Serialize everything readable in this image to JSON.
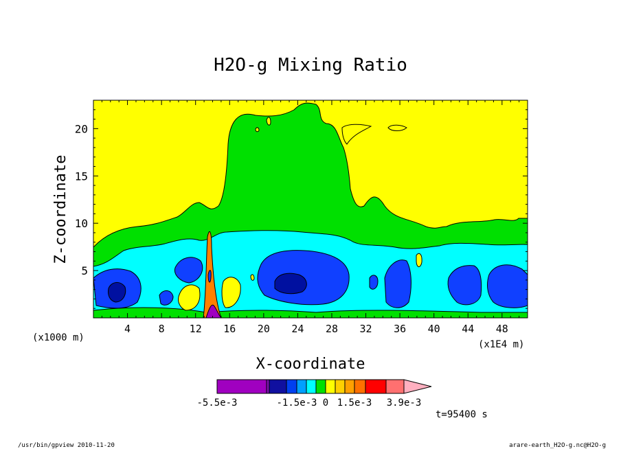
{
  "chart_data": {
    "type": "heatmap",
    "title": "H2O-g Mixing Ratio",
    "xlabel": "X-coordinate",
    "ylabel": "Z-coordinate",
    "x_unit_left": "(x1000 m)",
    "x_unit_right": "(x1E4 m)",
    "xlim": [
      0,
      51
    ],
    "ylim": [
      0,
      23
    ],
    "x_ticks": [
      4,
      8,
      12,
      16,
      20,
      24,
      28,
      32,
      36,
      40,
      44,
      48
    ],
    "y_ticks": [
      5,
      10,
      15,
      20
    ],
    "colorbar": {
      "colors": [
        "#a000c0",
        "#a000c0",
        "#a000c0",
        "#7a10b0",
        "#1010a0",
        "#0040f0",
        "#00a0ff",
        "#00ffff",
        "#00e000",
        "#ffff00",
        "#ffd000",
        "#ffa000",
        "#ff7000",
        "#ff0000",
        "#ff7070",
        "#ffb0c0"
      ],
      "tick_labels": [
        "-5.5e-3",
        "-1.5e-3",
        "0",
        "1.5e-3",
        "3.9e-3"
      ]
    },
    "field_colors": {
      "background": "#ffff00",
      "moist": "#00e000",
      "cyan": "#00ffff",
      "blue": "#1040ff",
      "dark_blue": "#0010a0",
      "plume_orange": "#ff8000",
      "plume_purple": "#a000c0"
    },
    "time_label": "t=95400 s"
  },
  "footer": {
    "left": "/usr/bin/gpview  2010-11-20",
    "right": "arare-earth_H2O-g.nc@H2O-g"
  }
}
